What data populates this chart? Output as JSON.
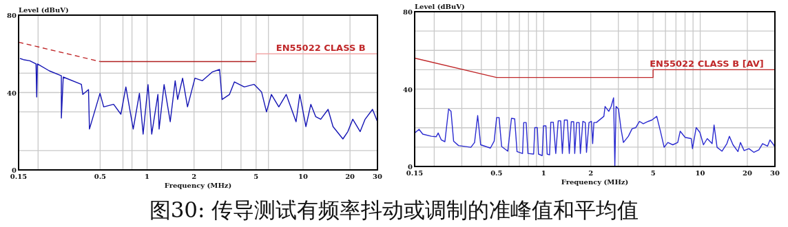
{
  "chart_data": [
    {
      "type": "line",
      "ylabel": "Level (dBuV)",
      "xlabel": "Frequency (MHz)",
      "log": "x",
      "grid": true,
      "xlim": [
        0.15,
        30
      ],
      "ylim": [
        0,
        80
      ],
      "xticks": [
        0.15,
        {
          "value": 0.2,
          "label": null
        },
        0.5,
        {
          "value": 0.7,
          "label": null
        },
        {
          "value": 0.8,
          "label": null
        },
        1,
        2,
        {
          "value": 3,
          "label": null
        },
        {
          "value": 4,
          "label": null
        },
        5,
        {
          "value": 6,
          "label": null
        },
        10,
        20,
        30
      ],
      "yticks": [
        0,
        {
          "value": 10,
          "label": null
        },
        {
          "value": 30,
          "label": null
        },
        40,
        {
          "value": 50,
          "label": null
        },
        80
      ],
      "series": [
        {
          "color": "#1414b4",
          "x": [
            0.153,
            0.161,
            0.177,
            0.194,
            0.196,
            0.198,
            0.236,
            0.282,
            0.282,
            0.29,
            0.379,
            0.387,
            0.421,
            0.427,
            0.499,
            0.527,
            0.61,
            0.679,
            0.731,
            0.815,
            0.893,
            0.943,
            1.014,
            1.071,
            1.173,
            1.194,
            1.285,
            1.407,
            1.514,
            1.57,
            1.689,
            1.816,
            2.026,
            2.262,
            2.615,
            2.916,
            3.025,
            3.374,
            3.63,
            4.2,
            4.857,
            5.418,
            5.828,
            6.269,
            6.992,
            7.799,
            9.021,
            9.529,
            10.43,
            11.22,
            12.06,
            12.98,
            14.47,
            15.56,
            18.01,
            19.37,
            20.84,
            23.24,
            25.0,
            27.89,
            30
          ],
          "values": [
            57.6,
            57.0,
            56.4,
            54.8,
            37.7,
            54.8,
            51.2,
            48.7,
            26.8,
            48.0,
            44.2,
            39.0,
            41.5,
            21.1,
            39.6,
            32.6,
            33.9,
            28.8,
            42.9,
            21.1,
            39.6,
            18.5,
            44.1,
            18.5,
            39.0,
            21.1,
            44.1,
            24.9,
            46.1,
            36.4,
            47.4,
            32.6,
            47.4,
            46.1,
            50.6,
            51.9,
            36.4,
            39.0,
            45.5,
            42.9,
            44.2,
            40.3,
            30.0,
            39.0,
            32.6,
            39.0,
            24.9,
            39.0,
            22.4,
            33.9,
            27.5,
            26.2,
            31.3,
            22.4,
            16.0,
            19.8,
            26.2,
            19.8,
            26.2,
            31.3,
            24.9
          ]
        },
        {
          "color": "#c0282a",
          "line_style": "dashed",
          "x": [
            0.15,
            0.5
          ],
          "values": [
            66,
            56
          ]
        },
        {
          "color": "#b01e1e",
          "x": [
            0.5,
            5
          ],
          "values": [
            56,
            56
          ]
        },
        {
          "color": "#f2a8a8",
          "x": [
            5,
            5,
            30
          ],
          "values": [
            56,
            60,
            60
          ]
        }
      ],
      "annotations": [
        {
          "text": "EN55022 CLASS B",
          "x": 13,
          "y": 60
        }
      ]
    },
    {
      "type": "line",
      "ylabel": "Level (dBuV)",
      "xlabel": "Frequency (MHz)",
      "log": "x",
      "grid": true,
      "xlim": [
        0.15,
        30
      ],
      "ylim": [
        0,
        80
      ],
      "xticks": [
        0.15,
        {
          "value": 0.2,
          "label": null
        },
        {
          "value": 0.3,
          "label": null
        },
        {
          "value": 0.4,
          "label": null
        },
        0.5,
        {
          "value": 0.6,
          "label": null
        },
        {
          "value": 0.7,
          "label": null
        },
        {
          "value": 0.8,
          "label": null
        },
        {
          "value": 0.9,
          "label": null
        },
        1,
        2,
        {
          "value": 3,
          "label": null
        },
        {
          "value": 4,
          "label": null
        },
        5,
        {
          "value": 6,
          "label": null
        },
        {
          "value": 7,
          "label": null
        },
        {
          "value": 8,
          "label": null
        },
        {
          "value": 9,
          "label": null
        },
        10,
        20,
        30
      ],
      "yticks": [
        0,
        {
          "value": 10,
          "label": null
        },
        {
          "value": 20,
          "label": null
        },
        {
          "value": 30,
          "label": null
        },
        40,
        {
          "value": 50,
          "label": null
        },
        {
          "value": 60,
          "label": null
        },
        {
          "value": 70,
          "label": null
        },
        80
      ],
      "series": [
        {
          "color": "#2a2ad0",
          "x": [
            0.15,
            0.16,
            0.169,
            0.192,
            0.206,
            0.212,
            0.222,
            0.234,
            0.247,
            0.256,
            0.266,
            0.286,
            0.343,
            0.362,
            0.379,
            0.396,
            0.457,
            0.483,
            0.501,
            0.519,
            0.539,
            0.59,
            0.623,
            0.653,
            0.676,
            0.733,
            0.746,
            0.773,
            0.794,
            0.863,
            0.878,
            0.911,
            0.927,
            0.979,
            0.997,
            1.034,
            1.053,
            1.091,
            1.111,
            1.152,
            1.195,
            1.239,
            1.284,
            1.317,
            1.356,
            1.416,
            1.458,
            1.501,
            1.556,
            1.579,
            1.625,
            1.685,
            1.716,
            1.779,
            1.844,
            1.878,
            1.948,
            2.02,
            2.056,
            2.094,
            2.171,
            2.424,
            2.468,
            2.606,
            2.698,
            2.797,
            2.849,
            2.901,
            3.007,
            3.118,
            3.233,
            3.476,
            3.672,
            3.878,
            4.096,
            4.327,
            4.651,
            4.911,
            5.277,
            5.573,
            5.884,
            6.212,
            6.682,
            7.185,
            7.449,
            8.012,
            8.768,
            8.928,
            9.428,
            9.952,
            10.49,
            11.09,
            11.91,
            12.26,
            12.81,
            13.77,
            14.8,
            15.35,
            16.2,
            17.42,
            18.07,
            19.07,
            20.49,
            22.03,
            23.69,
            25.02,
            26.9,
            27.89,
            29.45,
            30
          ],
          "values": [
            17.3,
            19.2,
            16.7,
            15.6,
            15.4,
            17.3,
            13.7,
            12.8,
            29.7,
            28.5,
            13.1,
            10.8,
            9.9,
            12.4,
            26.3,
            11.2,
            9.5,
            13.1,
            25.3,
            25.3,
            10.3,
            7.9,
            24.9,
            24.6,
            7.7,
            6.7,
            22.7,
            22.7,
            6.7,
            6.4,
            20.1,
            20.1,
            6.4,
            5.6,
            21.0,
            21.0,
            6.4,
            6.0,
            22.9,
            22.9,
            6.7,
            23.6,
            23.6,
            6.7,
            24.0,
            24.0,
            6.7,
            23.1,
            23.1,
            6.7,
            22.7,
            22.7,
            6.7,
            23.3,
            22.7,
            7.3,
            22.7,
            23.3,
            11.8,
            22.7,
            22.7,
            25.9,
            31.0,
            28.5,
            31.0,
            35.5,
            0.3,
            31.0,
            29.7,
            19.5,
            12.4,
            15.6,
            19.5,
            20.1,
            23.3,
            22.1,
            23.3,
            24.0,
            25.9,
            18.2,
            9.9,
            12.4,
            11.2,
            12.4,
            18.2,
            15.0,
            14.4,
            9.2,
            20.1,
            17.6,
            11.2,
            14.4,
            11.8,
            21.4,
            9.9,
            7.9,
            11.8,
            15.6,
            11.2,
            7.7,
            12.4,
            8.2,
            9.2,
            7.3,
            8.6,
            11.8,
            10.5,
            13.7,
            11.2,
            9.9
          ]
        },
        {
          "color": "#c0282a",
          "x": [
            0.15,
            0.5,
            5,
            5,
            30
          ],
          "values": [
            56,
            46,
            46,
            50,
            50
          ]
        }
      ],
      "annotations": [
        {
          "text": "EN55022 CLASS B [AV]",
          "x": 11,
          "y": 50
        }
      ]
    },
    {
      "type": "other",
      "title": "图30: 传导测试有频率抖动或调制的准峰值和平均值"
    }
  ]
}
